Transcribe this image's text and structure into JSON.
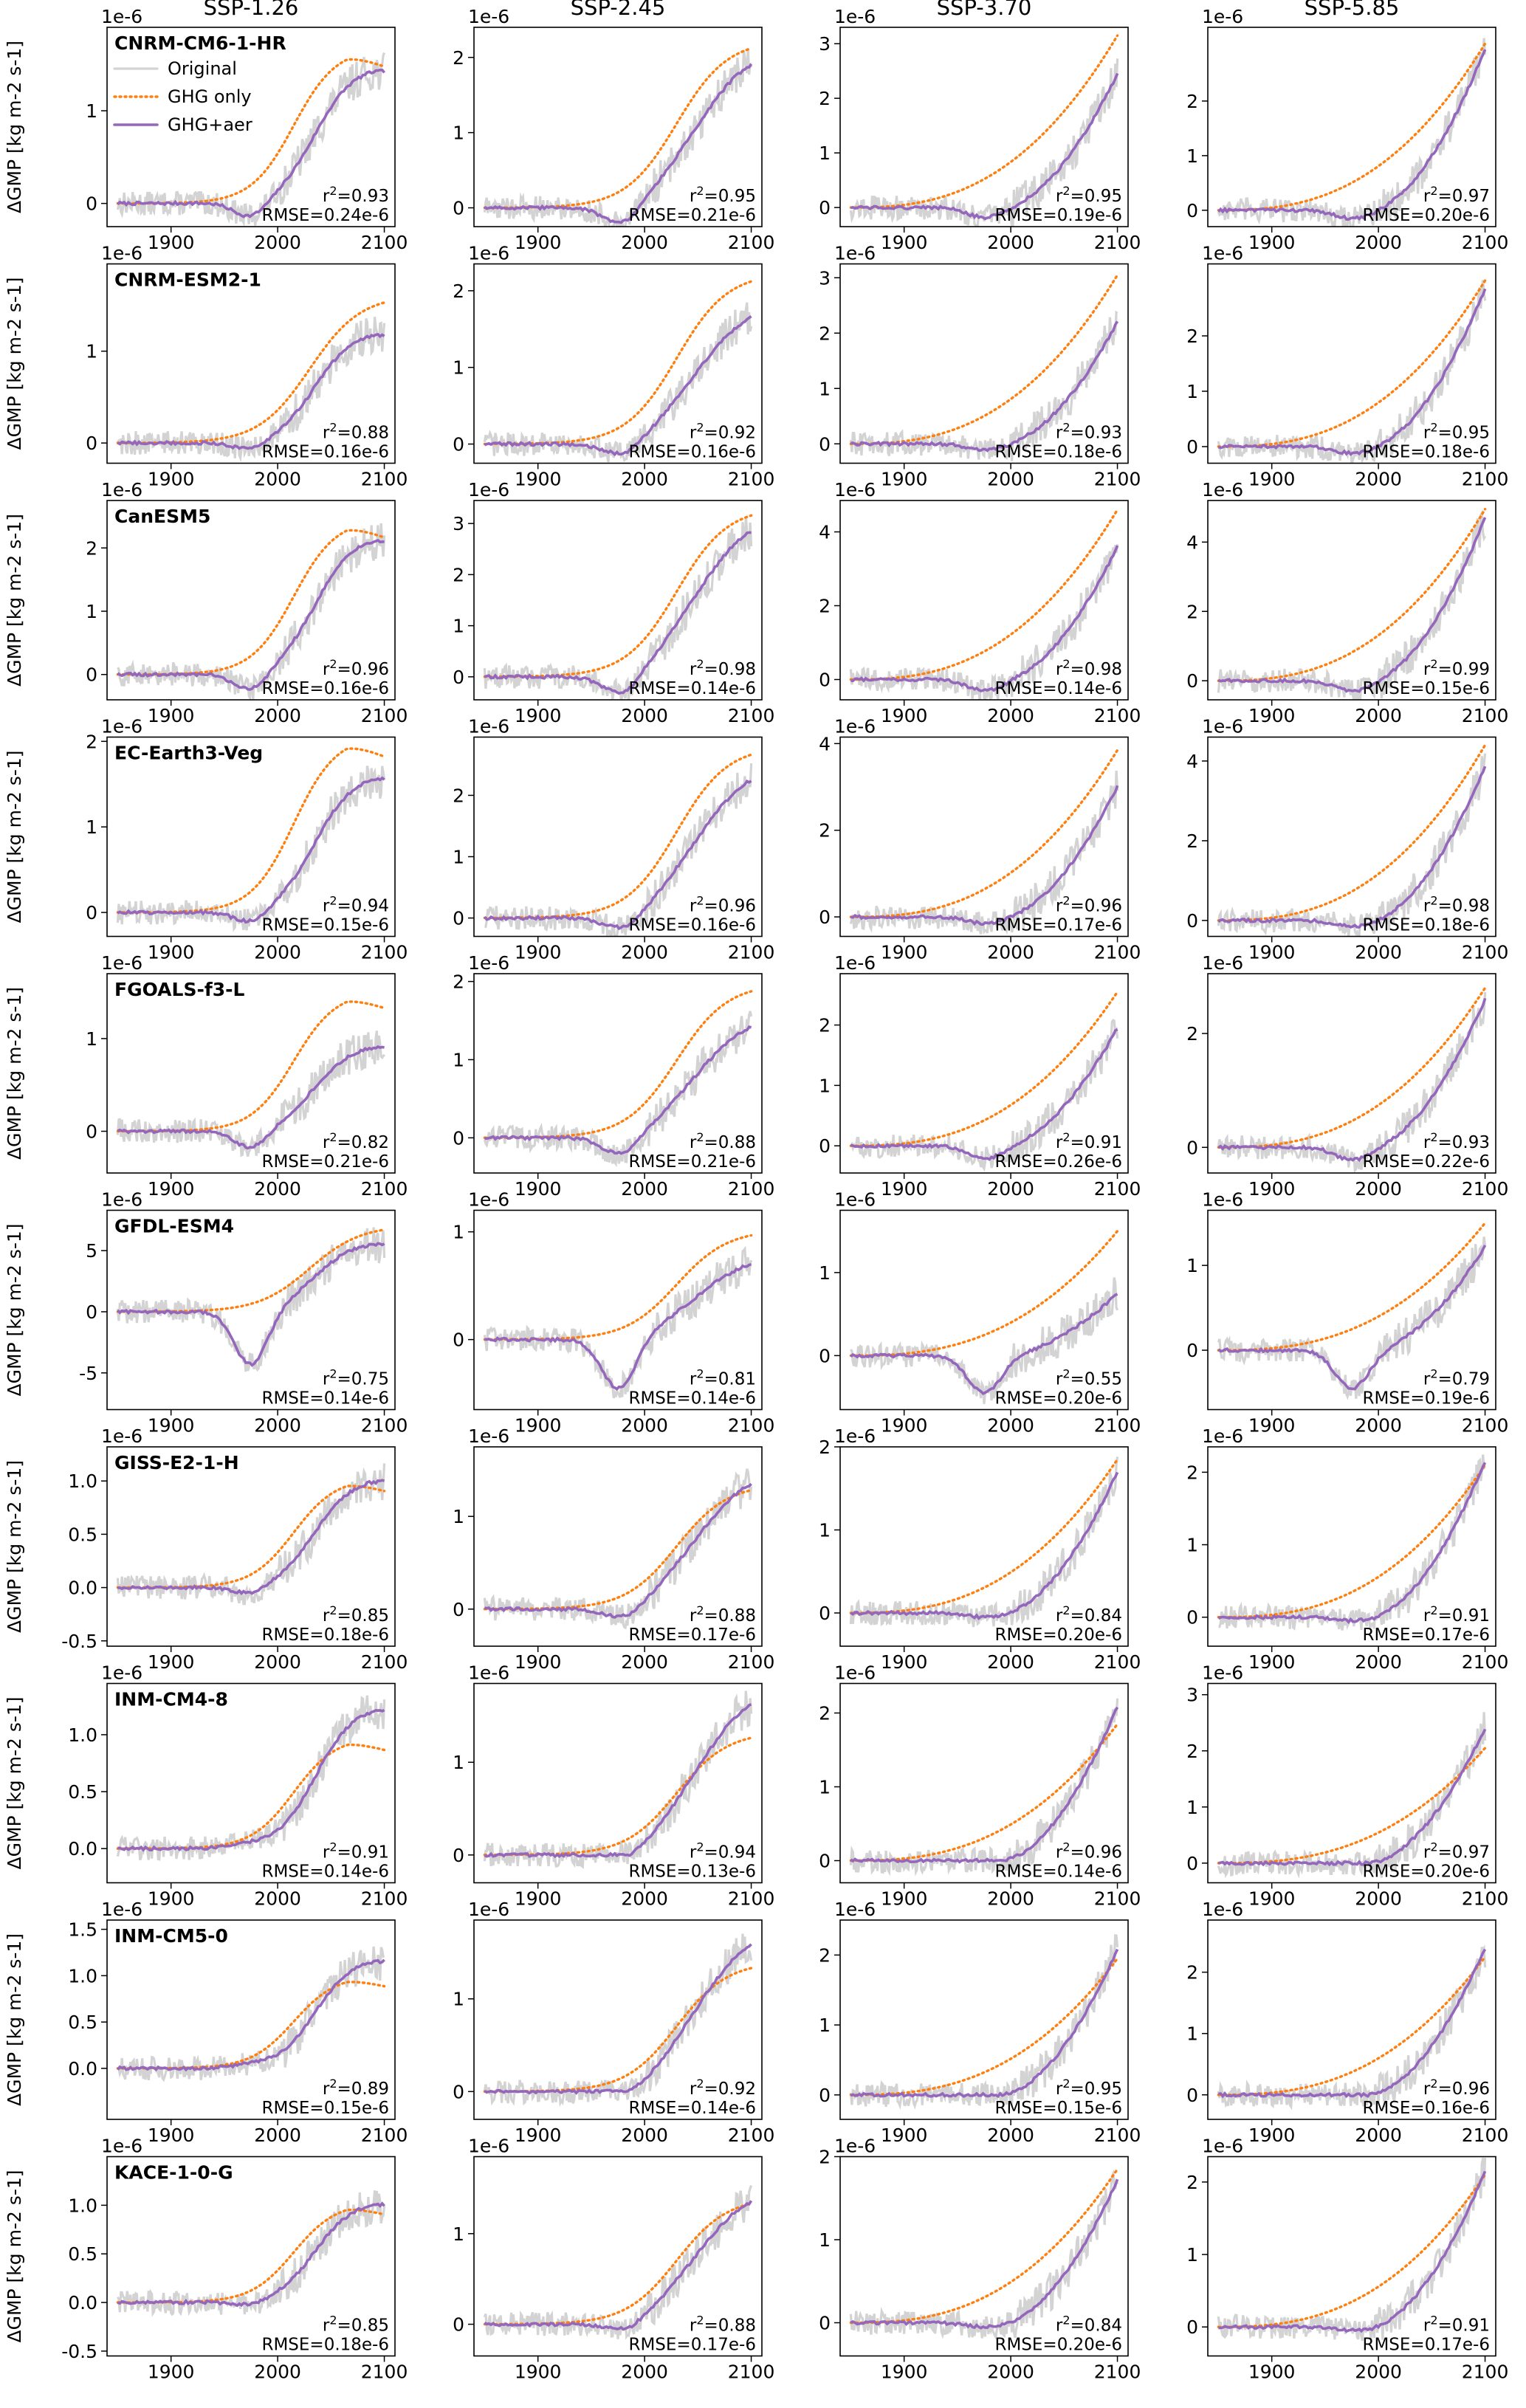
{
  "figure": {
    "columns": [
      "SSP-1.26",
      "SSP-2.45",
      "SSP-3.70",
      "SSP-5.85"
    ],
    "ylabel": "ΔGMP [kg m-2 s-1]",
    "offset_text": "1e-6",
    "legend": [
      "Original",
      "GHG only",
      "GHG+aer"
    ],
    "colors": {
      "original": "#d3d3d3",
      "ghg_only": "#ff7f0e",
      "ghg_aer": "#9467bd"
    },
    "x_ticks": [
      1900,
      2000,
      2100
    ],
    "xlim": [
      1840,
      2110
    ]
  },
  "chart_data": [
    {
      "model": "CNRM-CM6-1-HR",
      "scenario": "SSP-1.26",
      "type": "line",
      "ylim": [
        -0.25,
        1.9
      ],
      "yticks": [
        0,
        1
      ],
      "r2": "0.93",
      "rmse": "RMSE=0.24e-6",
      "ghg": {
        "d": -0.18,
        "end": 1.5,
        "sh": "peak"
      },
      "aer": {
        "end": 1.42,
        "sh": "sat"
      }
    },
    {
      "model": "CNRM-CM6-1-HR",
      "scenario": "SSP-2.45",
      "type": "line",
      "ylim": [
        -0.25,
        2.4
      ],
      "yticks": [
        0,
        1,
        2
      ],
      "r2": "0.95",
      "rmse": "RMSE=0.21e-6",
      "ghg": {
        "d": -0.18,
        "end": 2.15,
        "sh": "sat"
      },
      "aer": {
        "end": 1.9,
        "sh": "lin"
      }
    },
    {
      "model": "CNRM-CM6-1-HR",
      "scenario": "SSP-3.70",
      "type": "line",
      "ylim": [
        -0.35,
        3.3
      ],
      "yticks": [
        0,
        1,
        2,
        3
      ],
      "r2": "0.95",
      "rmse": "RMSE=0.19e-6",
      "ghg": {
        "d": -0.18,
        "end": 3.15,
        "sh": "rise"
      },
      "aer": {
        "end": 2.45,
        "sh": "rise"
      }
    },
    {
      "model": "CNRM-CM6-1-HR",
      "scenario": "SSP-5.85",
      "type": "line",
      "ylim": [
        -0.3,
        3.35
      ],
      "yticks": [
        0,
        1,
        2
      ],
      "r2": "0.97",
      "rmse": "RMSE=0.20e-6",
      "ghg": {
        "d": -0.15,
        "end": 3.05,
        "sh": "rise"
      },
      "aer": {
        "end": 2.95,
        "sh": "rise"
      }
    },
    {
      "model": "CNRM-ESM2-1",
      "scenario": "SSP-1.26",
      "type": "line",
      "ylim": [
        -0.22,
        1.95
      ],
      "yticks": [
        0,
        1
      ],
      "r2": "0.88",
      "rmse": "RMSE=0.16e-6",
      "ghg": {
        "d": -0.1,
        "end": 1.55,
        "sh": "sat"
      },
      "aer": {
        "end": 1.17,
        "sh": "sat"
      }
    },
    {
      "model": "CNRM-ESM2-1",
      "scenario": "SSP-2.45",
      "type": "line",
      "ylim": [
        -0.25,
        2.35
      ],
      "yticks": [
        0,
        1,
        2
      ],
      "r2": "0.92",
      "rmse": "RMSE=0.16e-6",
      "ghg": {
        "d": -0.12,
        "end": 2.15,
        "sh": "sat"
      },
      "aer": {
        "end": 1.65,
        "sh": "lin"
      }
    },
    {
      "model": "CNRM-ESM2-1",
      "scenario": "SSP-3.70",
      "type": "line",
      "ylim": [
        -0.35,
        3.25
      ],
      "yticks": [
        0,
        1,
        2,
        3
      ],
      "r2": "0.93",
      "rmse": "RMSE=0.18e-6",
      "ghg": {
        "d": -0.12,
        "end": 3.05,
        "sh": "rise"
      },
      "aer": {
        "end": 2.2,
        "sh": "rise"
      }
    },
    {
      "model": "CNRM-ESM2-1",
      "scenario": "SSP-5.85",
      "type": "line",
      "ylim": [
        -0.3,
        3.3
      ],
      "yticks": [
        0,
        1,
        2
      ],
      "r2": "0.95",
      "rmse": "RMSE=0.18e-6",
      "ghg": {
        "d": -0.12,
        "end": 3.0,
        "sh": "rise"
      },
      "aer": {
        "end": 2.85,
        "sh": "rise"
      }
    },
    {
      "model": "CanESM5",
      "scenario": "SSP-1.26",
      "type": "line",
      "ylim": [
        -0.4,
        2.75
      ],
      "yticks": [
        0,
        1,
        2
      ],
      "r2": "0.96",
      "rmse": "RMSE=0.16e-6",
      "ghg": {
        "d": -0.3,
        "end": 2.2,
        "sh": "peak"
      },
      "aer": {
        "end": 2.1,
        "sh": "sat"
      }
    },
    {
      "model": "CanESM5",
      "scenario": "SSP-2.45",
      "type": "line",
      "ylim": [
        -0.45,
        3.45
      ],
      "yticks": [
        0,
        1,
        2,
        3
      ],
      "r2": "0.98",
      "rmse": "RMSE=0.14e-6",
      "ghg": {
        "d": -0.3,
        "end": 3.2,
        "sh": "sat"
      },
      "aer": {
        "end": 2.85,
        "sh": "lin"
      }
    },
    {
      "model": "CanESM5",
      "scenario": "SSP-3.70",
      "type": "line",
      "ylim": [
        -0.55,
        4.85
      ],
      "yticks": [
        0,
        2,
        4
      ],
      "r2": "0.98",
      "rmse": "RMSE=0.14e-6",
      "ghg": {
        "d": -0.3,
        "end": 4.6,
        "sh": "rise"
      },
      "aer": {
        "end": 3.6,
        "sh": "rise"
      }
    },
    {
      "model": "CanESM5",
      "scenario": "SSP-5.85",
      "type": "line",
      "ylim": [
        -0.55,
        5.2
      ],
      "yticks": [
        0,
        2,
        4
      ],
      "r2": "0.99",
      "rmse": "RMSE=0.15e-6",
      "ghg": {
        "d": -0.3,
        "end": 4.95,
        "sh": "rise"
      },
      "aer": {
        "end": 4.7,
        "sh": "rise"
      }
    },
    {
      "model": "EC-Earth3-Veg",
      "scenario": "SSP-1.26",
      "type": "line",
      "ylim": [
        -0.28,
        2.05
      ],
      "yticks": [
        0,
        1,
        2
      ],
      "r2": "0.94",
      "rmse": "RMSE=0.15e-6",
      "ghg": {
        "d": -0.15,
        "end": 1.85,
        "sh": "peak"
      },
      "aer": {
        "end": 1.55,
        "sh": "sat"
      }
    },
    {
      "model": "EC-Earth3-Veg",
      "scenario": "SSP-2.45",
      "type": "line",
      "ylim": [
        -0.3,
        2.95
      ],
      "yticks": [
        0,
        1,
        2
      ],
      "r2": "0.96",
      "rmse": "RMSE=0.16e-6",
      "ghg": {
        "d": -0.15,
        "end": 2.7,
        "sh": "sat"
      },
      "aer": {
        "end": 2.25,
        "sh": "lin"
      }
    },
    {
      "model": "EC-Earth3-Veg",
      "scenario": "SSP-3.70",
      "type": "line",
      "ylim": [
        -0.45,
        4.15
      ],
      "yticks": [
        0,
        2,
        4
      ],
      "r2": "0.96",
      "rmse": "RMSE=0.17e-6",
      "ghg": {
        "d": -0.15,
        "end": 3.85,
        "sh": "rise"
      },
      "aer": {
        "end": 3.0,
        "sh": "rise"
      }
    },
    {
      "model": "EC-Earth3-Veg",
      "scenario": "SSP-5.85",
      "type": "line",
      "ylim": [
        -0.4,
        4.6
      ],
      "yticks": [
        0,
        2,
        4
      ],
      "r2": "0.98",
      "rmse": "RMSE=0.18e-6",
      "ghg": {
        "d": -0.15,
        "end": 4.4,
        "sh": "rise"
      },
      "aer": {
        "end": 3.85,
        "sh": "rise"
      }
    },
    {
      "model": "FGOALS-f3-L",
      "scenario": "SSP-1.26",
      "type": "line",
      "ylim": [
        -0.45,
        1.7
      ],
      "yticks": [
        0,
        1
      ],
      "r2": "0.82",
      "rmse": "RMSE=0.21e-6",
      "ghg": {
        "d": -0.2,
        "end": 1.35,
        "sh": "peak"
      },
      "aer": {
        "end": 0.9,
        "sh": "sat"
      }
    },
    {
      "model": "FGOALS-f3-L",
      "scenario": "SSP-2.45",
      "type": "line",
      "ylim": [
        -0.45,
        2.1
      ],
      "yticks": [
        0,
        1,
        2
      ],
      "r2": "0.88",
      "rmse": "RMSE=0.21e-6",
      "ghg": {
        "d": -0.2,
        "end": 1.9,
        "sh": "sat"
      },
      "aer": {
        "end": 1.42,
        "sh": "lin"
      }
    },
    {
      "model": "FGOALS-f3-L",
      "scenario": "SSP-3.70",
      "type": "line",
      "ylim": [
        -0.45,
        2.85
      ],
      "yticks": [
        0,
        1,
        2
      ],
      "r2": "0.91",
      "rmse": "RMSE=0.26e-6",
      "ghg": {
        "d": -0.22,
        "end": 2.55,
        "sh": "rise"
      },
      "aer": {
        "end": 1.95,
        "sh": "rise"
      }
    },
    {
      "model": "FGOALS-f3-L",
      "scenario": "SSP-5.85",
      "type": "line",
      "ylim": [
        -0.45,
        3.05
      ],
      "yticks": [
        0,
        2
      ],
      "r2": "0.93",
      "rmse": "RMSE=0.22e-6",
      "ghg": {
        "d": -0.22,
        "end": 2.8,
        "sh": "rise"
      },
      "aer": {
        "end": 2.6,
        "sh": "rise"
      }
    },
    {
      "model": "GFDL-ESM4",
      "scenario": "SSP-1.26",
      "type": "line",
      "ylim": [
        -8.0,
        8.3
      ],
      "yticks": [
        -5,
        0,
        5
      ],
      "r2": "0.75",
      "rmse": "RMSE=0.14e-6",
      "ghg": {
        "d": -4.5,
        "end": 6.8,
        "sh": "sat"
      },
      "aer": {
        "end": 5.5,
        "sh": "sat"
      }
    },
    {
      "model": "GFDL-ESM4",
      "scenario": "SSP-2.45",
      "type": "line",
      "ylim": [
        -0.65,
        1.2
      ],
      "yticks": [
        0,
        1
      ],
      "r2": "0.81",
      "rmse": "RMSE=0.14e-6",
      "ghg": {
        "d": -0.45,
        "end": 0.98,
        "sh": "sat"
      },
      "aer": {
        "end": 0.7,
        "sh": "lin"
      }
    },
    {
      "model": "GFDL-ESM4",
      "scenario": "SSP-3.70",
      "type": "line",
      "ylim": [
        -0.65,
        1.75
      ],
      "yticks": [
        0,
        1
      ],
      "r2": "0.55",
      "rmse": "RMSE=0.20e-6",
      "ghg": {
        "d": -0.45,
        "end": 1.5,
        "sh": "rise"
      },
      "aer": {
        "end": 0.75,
        "sh": "rise"
      }
    },
    {
      "model": "GFDL-ESM4",
      "scenario": "SSP-5.85",
      "type": "line",
      "ylim": [
        -0.7,
        1.65
      ],
      "yticks": [
        0,
        1
      ],
      "r2": "0.79",
      "rmse": "RMSE=0.19e-6",
      "ghg": {
        "d": -0.45,
        "end": 1.5,
        "sh": "rise"
      },
      "aer": {
        "end": 1.22,
        "sh": "rise"
      }
    },
    {
      "model": "GISS-E2-1-H",
      "scenario": "SSP-1.26",
      "type": "line",
      "ylim": [
        -0.55,
        1.32
      ],
      "yticks": [
        -0.5,
        0.0,
        0.5,
        1.0
      ],
      "fmt": 1,
      "r2": "0.85",
      "rmse": "RMSE=0.18e-6",
      "ghg": {
        "d": -0.08,
        "end": 0.92,
        "sh": "peak"
      },
      "aer": {
        "end": 0.99,
        "sh": "sat"
      }
    },
    {
      "model": "GISS-E2-1-H",
      "scenario": "SSP-2.45",
      "type": "line",
      "ylim": [
        -0.4,
        1.75
      ],
      "yticks": [
        0,
        1
      ],
      "r2": "0.88",
      "rmse": "RMSE=0.17e-6",
      "ghg": {
        "d": -0.08,
        "end": 1.3,
        "sh": "sat"
      },
      "aer": {
        "end": 1.35,
        "sh": "lin"
      }
    },
    {
      "model": "GISS-E2-1-H",
      "scenario": "SSP-3.70",
      "type": "line",
      "ylim": [
        -0.4,
        2.0
      ],
      "yticks": [
        0,
        1,
        2
      ],
      "r2": "0.84",
      "rmse": "RMSE=0.20e-6",
      "ghg": {
        "d": -0.05,
        "end": 1.85,
        "sh": "rise"
      },
      "aer": {
        "end": 1.7,
        "sh": "rise"
      }
    },
    {
      "model": "GISS-E2-1-H",
      "scenario": "SSP-5.85",
      "type": "line",
      "ylim": [
        -0.4,
        2.35
      ],
      "yticks": [
        0,
        1,
        2
      ],
      "r2": "0.91",
      "rmse": "RMSE=0.17e-6",
      "ghg": {
        "d": -0.05,
        "end": 2.1,
        "sh": "rise"
      },
      "aer": {
        "end": 2.15,
        "sh": "rise"
      }
    },
    {
      "model": "INM-CM4-8",
      "scenario": "SSP-1.26",
      "type": "line",
      "ylim": [
        -0.3,
        1.45
      ],
      "yticks": [
        0.0,
        0.5,
        1.0
      ],
      "fmt": 1,
      "r2": "0.91",
      "rmse": "RMSE=0.14e-6",
      "ghg": {
        "d": 0.02,
        "end": 0.88,
        "sh": "peak"
      },
      "aer": {
        "end": 1.2,
        "sh": "sat"
      }
    },
    {
      "model": "INM-CM4-8",
      "scenario": "SSP-2.45",
      "type": "line",
      "ylim": [
        -0.3,
        1.85
      ],
      "yticks": [
        0,
        1
      ],
      "r2": "0.94",
      "rmse": "RMSE=0.13e-6",
      "ghg": {
        "d": 0.0,
        "end": 1.28,
        "sh": "sat"
      },
      "aer": {
        "end": 1.62,
        "sh": "lin"
      }
    },
    {
      "model": "INM-CM4-8",
      "scenario": "SSP-3.70",
      "type": "line",
      "ylim": [
        -0.3,
        2.4
      ],
      "yticks": [
        0,
        1,
        2
      ],
      "r2": "0.96",
      "rmse": "RMSE=0.14e-6",
      "ghg": {
        "d": 0.0,
        "end": 1.85,
        "sh": "rise"
      },
      "aer": {
        "end": 2.08,
        "sh": "rise"
      }
    },
    {
      "model": "INM-CM4-8",
      "scenario": "SSP-5.85",
      "type": "line",
      "ylim": [
        -0.35,
        3.2
      ],
      "yticks": [
        0,
        1,
        2,
        3
      ],
      "r2": "0.97",
      "rmse": "RMSE=0.20e-6",
      "ghg": {
        "d": 0.0,
        "end": 2.05,
        "sh": "rise"
      },
      "aer": {
        "end": 2.4,
        "sh": "rise"
      }
    },
    {
      "model": "INM-CM5-0",
      "scenario": "SSP-1.26",
      "type": "line",
      "ylim": [
        -0.55,
        1.6
      ],
      "yticks": [
        0.0,
        0.5,
        1.0,
        1.5
      ],
      "fmt": 1,
      "r2": "0.89",
      "rmse": "RMSE=0.15e-6",
      "ghg": {
        "d": 0.02,
        "end": 0.9,
        "sh": "peak"
      },
      "aer": {
        "end": 1.15,
        "sh": "sat"
      }
    },
    {
      "model": "INM-CM5-0",
      "scenario": "SSP-2.45",
      "type": "line",
      "ylim": [
        -0.3,
        1.85
      ],
      "yticks": [
        0,
        1
      ],
      "r2": "0.92",
      "rmse": "RMSE=0.14e-6",
      "ghg": {
        "d": 0.0,
        "end": 1.35,
        "sh": "sat"
      },
      "aer": {
        "end": 1.58,
        "sh": "lin"
      }
    },
    {
      "model": "INM-CM5-0",
      "scenario": "SSP-3.70",
      "type": "line",
      "ylim": [
        -0.35,
        2.5
      ],
      "yticks": [
        0,
        1,
        2
      ],
      "r2": "0.95",
      "rmse": "RMSE=0.15e-6",
      "ghg": {
        "d": 0.0,
        "end": 1.95,
        "sh": "rise"
      },
      "aer": {
        "end": 2.08,
        "sh": "rise"
      }
    },
    {
      "model": "INM-CM5-0",
      "scenario": "SSP-5.85",
      "type": "line",
      "ylim": [
        -0.4,
        2.85
      ],
      "yticks": [
        0,
        1,
        2
      ],
      "r2": "0.96",
      "rmse": "RMSE=0.16e-6",
      "ghg": {
        "d": 0.0,
        "end": 2.25,
        "sh": "rise"
      },
      "aer": {
        "end": 2.38,
        "sh": "rise"
      }
    },
    {
      "model": "KACE-1-0-G",
      "scenario": "SSP-1.26",
      "type": "line",
      "ylim": [
        -0.55,
        1.5
      ],
      "yticks": [
        -0.5,
        0.0,
        0.5,
        1.0
      ],
      "fmt": 1,
      "r2": "0.85",
      "rmse": "RMSE=0.18e-6",
      "ghg": {
        "d": -0.05,
        "end": 0.92,
        "sh": "peak"
      },
      "aer": {
        "end": 1.0,
        "sh": "sat"
      }
    },
    {
      "model": "KACE-1-0-G",
      "scenario": "SSP-2.45",
      "type": "line",
      "ylim": [
        -0.35,
        1.85
      ],
      "yticks": [
        0,
        1
      ],
      "r2": "0.88",
      "rmse": "RMSE=0.17e-6",
      "ghg": {
        "d": -0.05,
        "end": 1.35,
        "sh": "sat"
      },
      "aer": {
        "end": 1.35,
        "sh": "lin"
      }
    },
    {
      "model": "KACE-1-0-G",
      "scenario": "SSP-3.70",
      "type": "line",
      "ylim": [
        -0.4,
        2.0
      ],
      "yticks": [
        0,
        1,
        2
      ],
      "r2": "0.84",
      "rmse": "RMSE=0.20e-6",
      "ghg": {
        "d": -0.05,
        "end": 1.85,
        "sh": "rise"
      },
      "aer": {
        "end": 1.72,
        "sh": "rise"
      }
    },
    {
      "model": "KACE-1-0-G",
      "scenario": "SSP-5.85",
      "type": "line",
      "ylim": [
        -0.4,
        2.35
      ],
      "yticks": [
        0,
        1,
        2
      ],
      "r2": "0.91",
      "rmse": "RMSE=0.17e-6",
      "ghg": {
        "d": -0.05,
        "end": 2.1,
        "sh": "rise"
      },
      "aer": {
        "end": 2.15,
        "sh": "rise"
      }
    }
  ]
}
